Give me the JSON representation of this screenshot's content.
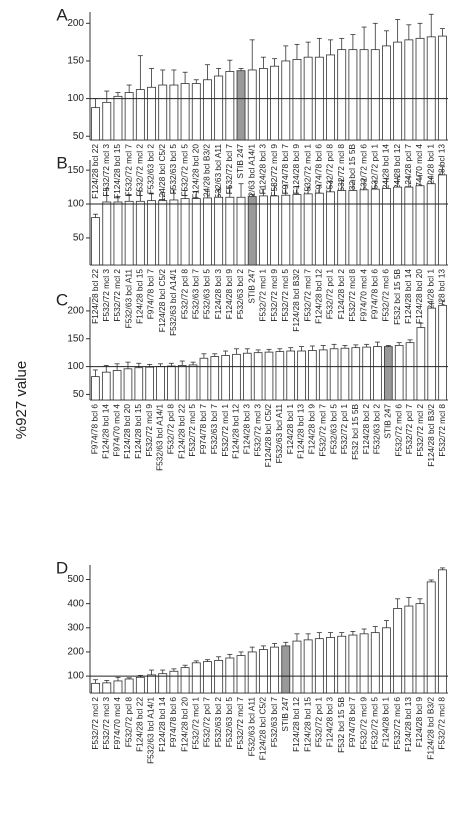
{
  "ylabel": "%927 value",
  "chart_data": [
    {
      "type": "bar",
      "label": "A",
      "color": "#ffffff",
      "highlight": {
        "category": "STIB 247",
        "color": "#999999"
      },
      "reference_line": 100,
      "ylim": [
        45,
        215
      ],
      "yticks": [
        50,
        100,
        150,
        200
      ],
      "categories": [
        "F124/28 bcl 22",
        "F532/72 mcl 3",
        "F124/28 bcl 15",
        "F532/72 mcl 7",
        "F532/72 mcl 2",
        "F532/63 bcl 2",
        "F124/28 bcl C5/2",
        "F532/63 bcl 5",
        "F532/72 mcl 5",
        "F124/28 bcl 20",
        "F124/28 bcl B3/2",
        "F532/63 bcl A11",
        "F532/72 bcl 7",
        "STIB 247",
        "F532/63 bcl A14/1",
        "F124/28 bcl 3",
        "F532/72 mcl 9",
        "F974/78 bcl 7",
        "F124/28 bcl 9",
        "F532/72 mcl 1",
        "F974/78 bcl 6",
        "F532/72 pcl 8",
        "F532/72 mcl 8",
        "F532 bcl 15 5B",
        "F532/72 mcl 6",
        "F532/72 pcl 1",
        "F124/28 bcl 14",
        "F124/28 bcl 12",
        "F124/28 pcl 7",
        "F974/70 mcl 4",
        "F124/28 bcl 1",
        "F124/28 bcl 13"
      ],
      "values": [
        88,
        95,
        103,
        108,
        112,
        115,
        118,
        118,
        120,
        120,
        125,
        130,
        136,
        137,
        138,
        140,
        143,
        150,
        152,
        155,
        155,
        158,
        165,
        165,
        165,
        165,
        170,
        175,
        178,
        180,
        182,
        183
      ],
      "errors": [
        12,
        15,
        5,
        10,
        45,
        25,
        20,
        20,
        15,
        5,
        20,
        10,
        15,
        3,
        40,
        15,
        10,
        20,
        20,
        20,
        25,
        20,
        15,
        20,
        30,
        35,
        20,
        30,
        20,
        20,
        30,
        10
      ]
    },
    {
      "type": "bar",
      "label": "B",
      "color": "#ffffff",
      "highlight": {
        "category": "STIB 247",
        "color": "#999999"
      },
      "reference_line": 100,
      "ylim": [
        10,
        165
      ],
      "yticks": [
        50,
        100,
        150
      ],
      "categories": [
        "F124/28 bcl 22",
        "F532/72 mcl 3",
        "F532/72 mcl 2",
        "F532/63 bcl A11",
        "F124/28 bcl 15",
        "F974/78 bcl 7",
        "F124/28 bcl C5/2",
        "F532/63 bcl A14/1",
        "F532/72 pcl 8",
        "F532/63 bcl 7",
        "F532/63 bcl 5",
        "F124/28 bcl 3",
        "F124/28 bcl 9",
        "F532/63 bcl 2",
        "STIB 247",
        "F532/72 mcl 1",
        "F532/72 mcl 9",
        "F532/72 mcl 5",
        "F124/28 bcl B3/2",
        "F532/72 mcl 7",
        "F124/28 bcl 12",
        "F532/72 pcl 1",
        "F124/28 bcl 2",
        "F532/72 mcl 8",
        "F974/70 mcl 4",
        "F974/78 bcl 6",
        "F532/72 mcl 6",
        "F532 bcl 15 5B",
        "F124/28 bcl 14",
        "F124/28 bcl 20",
        "F124/28 bcl 1",
        "F124/28 bcl 13"
      ],
      "values": [
        80,
        103,
        103,
        104,
        104,
        105,
        105,
        106,
        108,
        108,
        109,
        110,
        110,
        110,
        111,
        112,
        112,
        113,
        114,
        115,
        116,
        118,
        120,
        120,
        121,
        122,
        123,
        125,
        125,
        127,
        130,
        143
      ],
      "errors": [
        5,
        20,
        8,
        10,
        15,
        10,
        12,
        15,
        12,
        10,
        10,
        12,
        15,
        20,
        3,
        10,
        15,
        15,
        12,
        10,
        12,
        15,
        15,
        15,
        15,
        12,
        15,
        15,
        15,
        15,
        8,
        12
      ]
    },
    {
      "type": "bar",
      "label": "C",
      "color": "#ffffff",
      "highlight": {
        "category": "STIB 247",
        "color": "#999999"
      },
      "reference_line": 100,
      "ylim": [
        40,
        225
      ],
      "yticks": [
        50,
        100,
        150,
        200
      ],
      "categories": [
        "F974/78 bcl 6",
        "F124/28 bcl 14",
        "F974/70 mcl 4",
        "F124/28 bcl 20",
        "F124/28 bcl 15",
        "F532/72 mcl 9",
        "F532/63 bcl A14/1",
        "F532/72 pcl 8",
        "F124/28 bcl 22",
        "F532/72 mcl 5",
        "F974/78 bcl 7",
        "F532/63 bcl 7",
        "F532/72 mcl 1",
        "F124/28 bcl 12",
        "F124/28 bcl 3",
        "F532/72 mcl 3",
        "F124/28 bcl C5/2",
        "F532/63 bcl A11",
        "F124/28 bcl 1",
        "F124/28 bcl 13",
        "F124/28 bcl 9",
        "F532/72 mcl 7",
        "F532/63 bcl 5",
        "F532/72 pcl 1",
        "F532 bcl 15 5B",
        "F124/28 bcl 2",
        "F532/63 bcl 2",
        "STIB 247",
        "F532/72 mcl 6",
        "F532/72 pcl 7",
        "F532/72 mcl 2",
        "F124/28 bcl B3/2",
        "F532/72 mcl 8"
      ],
      "values": [
        82,
        90,
        93,
        96,
        98,
        99,
        100,
        101,
        102,
        103,
        115,
        118,
        120,
        122,
        124,
        125,
        126,
        127,
        128,
        128,
        129,
        130,
        132,
        133,
        134,
        135,
        136,
        136,
        138,
        143,
        170,
        205,
        210
      ],
      "errors": [
        12,
        12,
        12,
        12,
        8,
        5,
        5,
        5,
        8,
        5,
        8,
        5,
        8,
        10,
        8,
        5,
        5,
        5,
        6,
        8,
        8,
        8,
        8,
        5,
        5,
        5,
        8,
        2,
        5,
        5,
        8,
        8,
        8
      ]
    },
    {
      "type": "bar",
      "label": "D",
      "color": "#ffffff",
      "highlight": {
        "category": "STIB 247",
        "color": "#999999"
      },
      "reference_line": 100,
      "ylim": [
        30,
        560
      ],
      "yticks": [
        100,
        200,
        300,
        400,
        500
      ],
      "categories": [
        "F532/72 mcl 2",
        "F532/72 mcl 3",
        "F974/70 mcl 4",
        "F532/72 pcl 8",
        "F124/28 bcl 22",
        "F532/63 bcl A14/1",
        "F124/28 bcl 14",
        "F974/78 bcl 6",
        "F124/28 bcl 20",
        "F532/72 mcl 1",
        "F532/72 pcl 7",
        "F532/63 bcl 2",
        "F532/63 bcl 5",
        "F532/72 mcl 7",
        "F532/63 bcl A11",
        "F124/28 bcl C5/2",
        "F532/63 bcl 7",
        "STIB 247",
        "F124/28 bcl 12",
        "F124/28 bcl 15",
        "F532/72 pcl 1",
        "F124/28 bcl 3",
        "F532 bcl 15 5B",
        "F974/78 bcl 7",
        "F532/72 mcl 9",
        "F532/72 mcl 5",
        "F124/28 bcl 1",
        "F532/72 mcl 6",
        "F124/28 bcl 13",
        "F124/28 bcl 9",
        "F124/28 bcl B3/2",
        "F532/72 mcl 8"
      ],
      "values": [
        70,
        72,
        80,
        88,
        95,
        105,
        110,
        120,
        135,
        155,
        160,
        165,
        175,
        185,
        200,
        210,
        220,
        225,
        245,
        250,
        255,
        260,
        265,
        270,
        275,
        280,
        300,
        380,
        390,
        400,
        490,
        540
      ],
      "errors": [
        15,
        10,
        15,
        5,
        8,
        20,
        15,
        10,
        10,
        8,
        8,
        15,
        15,
        15,
        20,
        15,
        15,
        15,
        30,
        25,
        25,
        20,
        15,
        15,
        20,
        25,
        30,
        40,
        35,
        20,
        8,
        8
      ]
    }
  ]
}
